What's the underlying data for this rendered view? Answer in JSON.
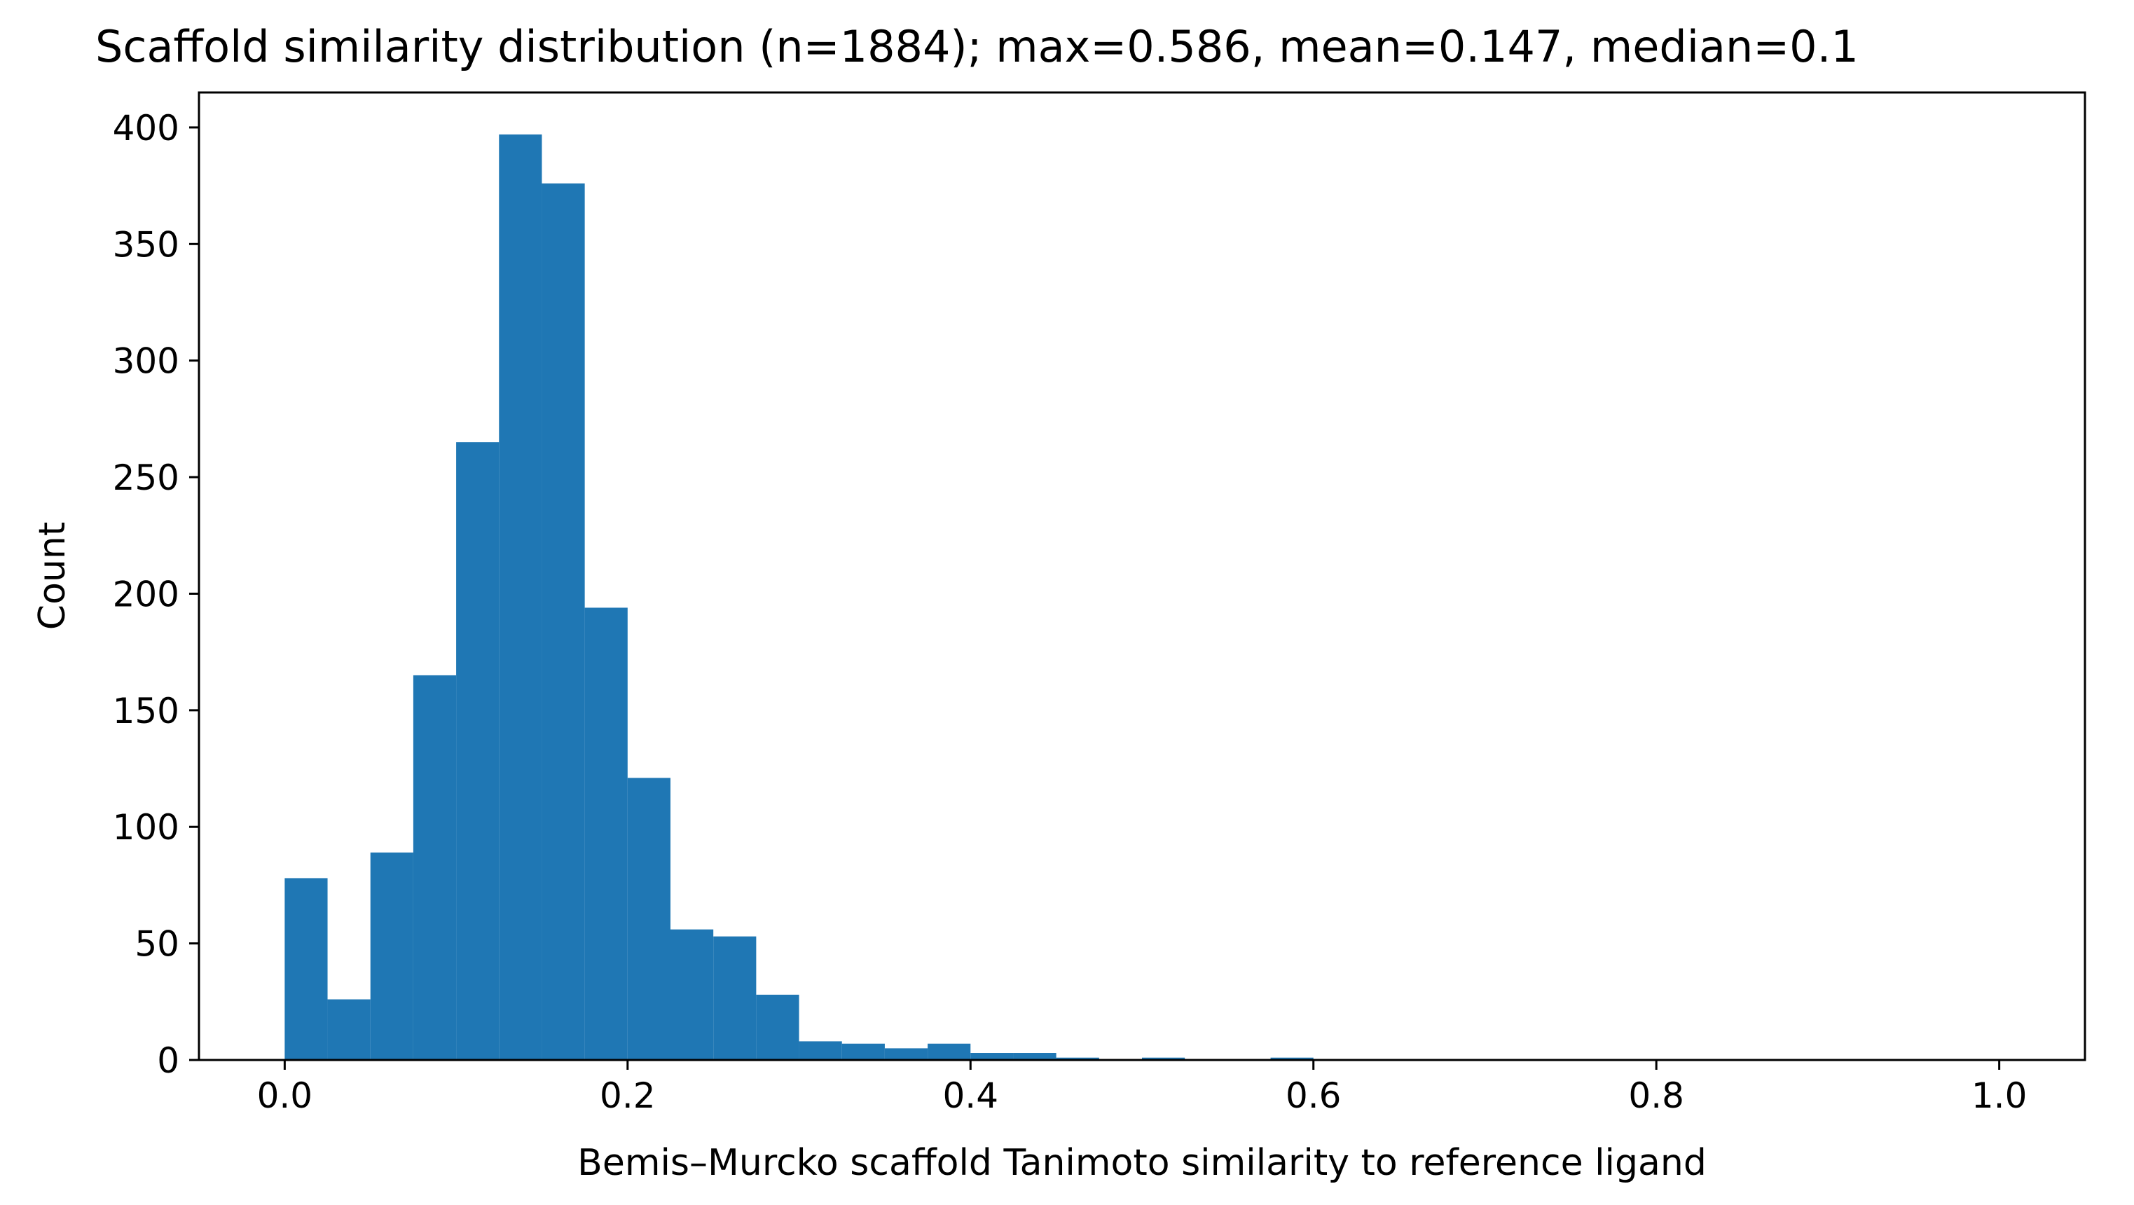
{
  "chart_data": {
    "type": "bar",
    "title": "Scaffold similarity distribution (n=1884);  max=0.586, mean=0.147, median=0.1",
    "xlabel": "Bemis–Murcko scaffold Tanimoto similarity to reference ligand",
    "ylabel": "Count",
    "xlim": [
      -0.05,
      1.05
    ],
    "ylim": [
      0,
      415
    ],
    "xticks": [
      0.0,
      0.2,
      0.4,
      0.6,
      0.8,
      1.0
    ],
    "xtick_labels": [
      "0.0",
      "0.2",
      "0.4",
      "0.6",
      "0.8",
      "1.0"
    ],
    "yticks": [
      0,
      50,
      100,
      150,
      200,
      250,
      300,
      350,
      400
    ],
    "ytick_labels": [
      "0",
      "50",
      "100",
      "150",
      "200",
      "250",
      "300",
      "350",
      "400"
    ],
    "bin_width": 0.025,
    "bin_starts": [
      0.0,
      0.025,
      0.05,
      0.075,
      0.1,
      0.125,
      0.15,
      0.175,
      0.2,
      0.225,
      0.25,
      0.275,
      0.3,
      0.325,
      0.35,
      0.375,
      0.4,
      0.425,
      0.45,
      0.475,
      0.5,
      0.525,
      0.55,
      0.575,
      0.6,
      0.625,
      0.65,
      0.675,
      0.7,
      0.725,
      0.75,
      0.775,
      0.8,
      0.825,
      0.85,
      0.875,
      0.9,
      0.925,
      0.95,
      0.975
    ],
    "values": [
      78,
      26,
      89,
      165,
      265,
      397,
      376,
      194,
      121,
      56,
      53,
      28,
      8,
      7,
      5,
      7,
      3,
      3,
      1,
      0,
      1,
      0,
      0,
      1,
      0,
      0,
      0,
      0,
      0,
      0,
      0,
      0,
      0,
      0,
      0,
      0,
      0,
      0,
      0,
      0
    ],
    "bar_color": "#1f77b4",
    "grid": false,
    "legend": "none"
  }
}
